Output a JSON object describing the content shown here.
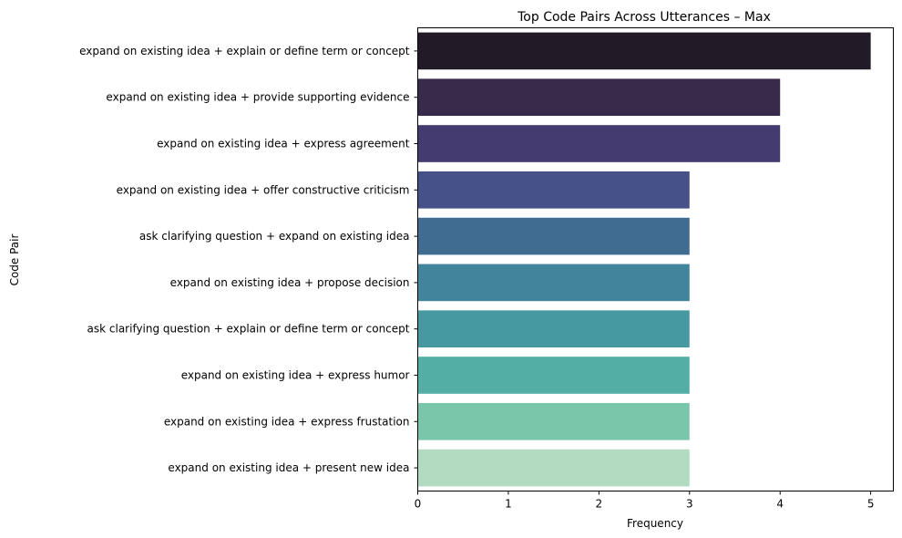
{
  "chart_data": {
    "type": "bar",
    "orientation": "horizontal",
    "title": "Top Code Pairs Across Utterances – Max",
    "xlabel": "Frequency",
    "ylabel": "Code Pair",
    "xlim": [
      0,
      5.25
    ],
    "xticks": [
      "0",
      "1",
      "2",
      "3",
      "4",
      "5"
    ],
    "grid": false,
    "categories": [
      "expand on existing idea + explain or define term or concept",
      "expand on existing idea + provide supporting evidence",
      "expand on existing idea + express agreement ",
      "expand on existing idea + offer constructive criticism",
      "ask clarifying question + expand on existing idea",
      "expand on existing idea + propose decision",
      "ask clarifying question + explain or define term or concept",
      "expand on existing idea + express humor",
      "expand on existing idea + express frustation",
      "expand on existing idea + present new idea"
    ],
    "values": [
      5,
      4,
      4,
      3,
      3,
      3,
      3,
      3,
      3,
      3
    ],
    "colors": [
      "#231A28",
      "#372A4A",
      "#443C71",
      "#465089",
      "#416C92",
      "#42849C",
      "#4699A1",
      "#53AFA5",
      "#7AC6AA",
      "#B2DBC2"
    ]
  }
}
